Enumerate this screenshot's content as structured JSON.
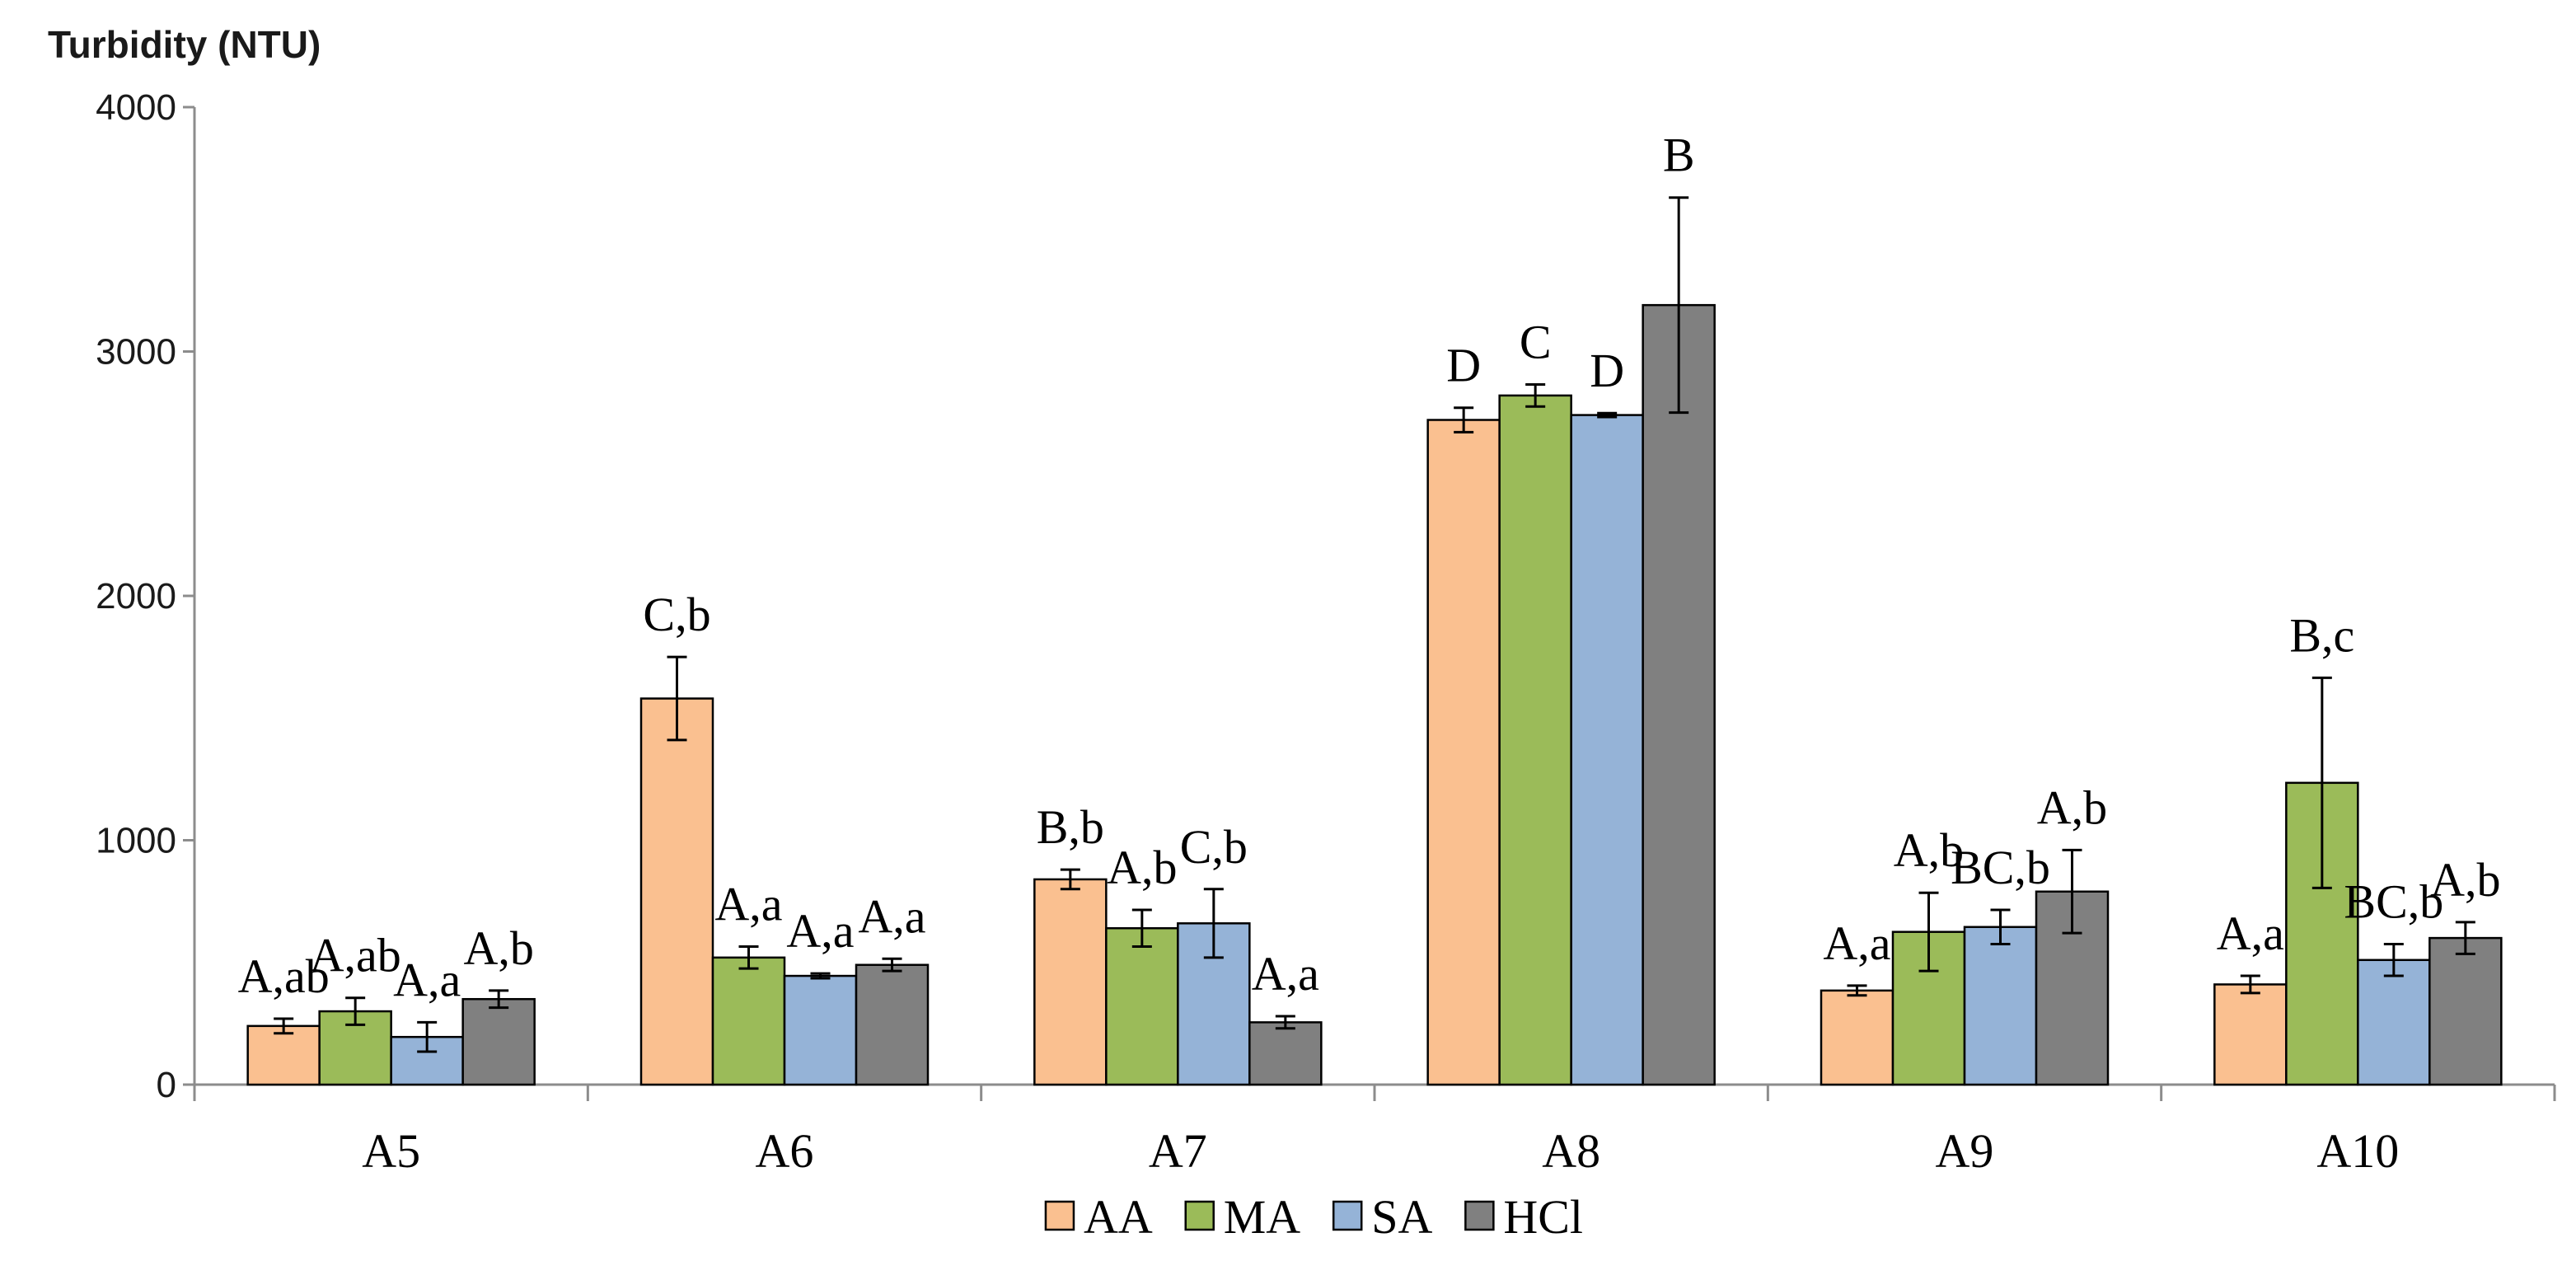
{
  "chart_data": {
    "type": "bar",
    "title": "",
    "ylabel": "Turbidity (NTU)",
    "xlabel": "",
    "ylim": [
      0,
      4000
    ],
    "yticks": [
      "0",
      "1000",
      "2000",
      "3000",
      "4000"
    ],
    "categories": [
      "A5",
      "A6",
      "A7",
      "A8",
      "A9",
      "A10"
    ],
    "legend_position": "bottom",
    "series": [
      {
        "name": "AA",
        "color": "#FAC090",
        "values": [
          240,
          1580,
          840,
          2720,
          385,
          410
        ],
        "errors": [
          30,
          170,
          40,
          50,
          20,
          35
        ],
        "labels": [
          "A,ab",
          "C,b",
          "B,b",
          "D",
          "A,a",
          "A,a"
        ]
      },
      {
        "name": "MA",
        "color": "#9BBB59",
        "values": [
          300,
          520,
          640,
          2820,
          625,
          1235
        ],
        "errors": [
          55,
          45,
          75,
          45,
          160,
          430
        ],
        "labels": [
          "A,ab",
          "A,a",
          "A,b",
          "C",
          "A,b",
          "B,c"
        ]
      },
      {
        "name": "SA",
        "color": "#95B3D7",
        "values": [
          195,
          445,
          660,
          2740,
          645,
          510
        ],
        "errors": [
          60,
          10,
          140,
          8,
          70,
          65
        ],
        "labels": [
          "A,a",
          "A,a",
          "C,b",
          "D",
          "BC,b",
          "BC,b"
        ]
      },
      {
        "name": "HCl",
        "color": "#808080",
        "values": [
          350,
          490,
          255,
          3190,
          790,
          600
        ],
        "errors": [
          35,
          25,
          25,
          440,
          170,
          65
        ],
        "labels": [
          "A,b",
          "A,a",
          "A,a",
          "B",
          "A,b",
          "A,b"
        ]
      }
    ]
  }
}
